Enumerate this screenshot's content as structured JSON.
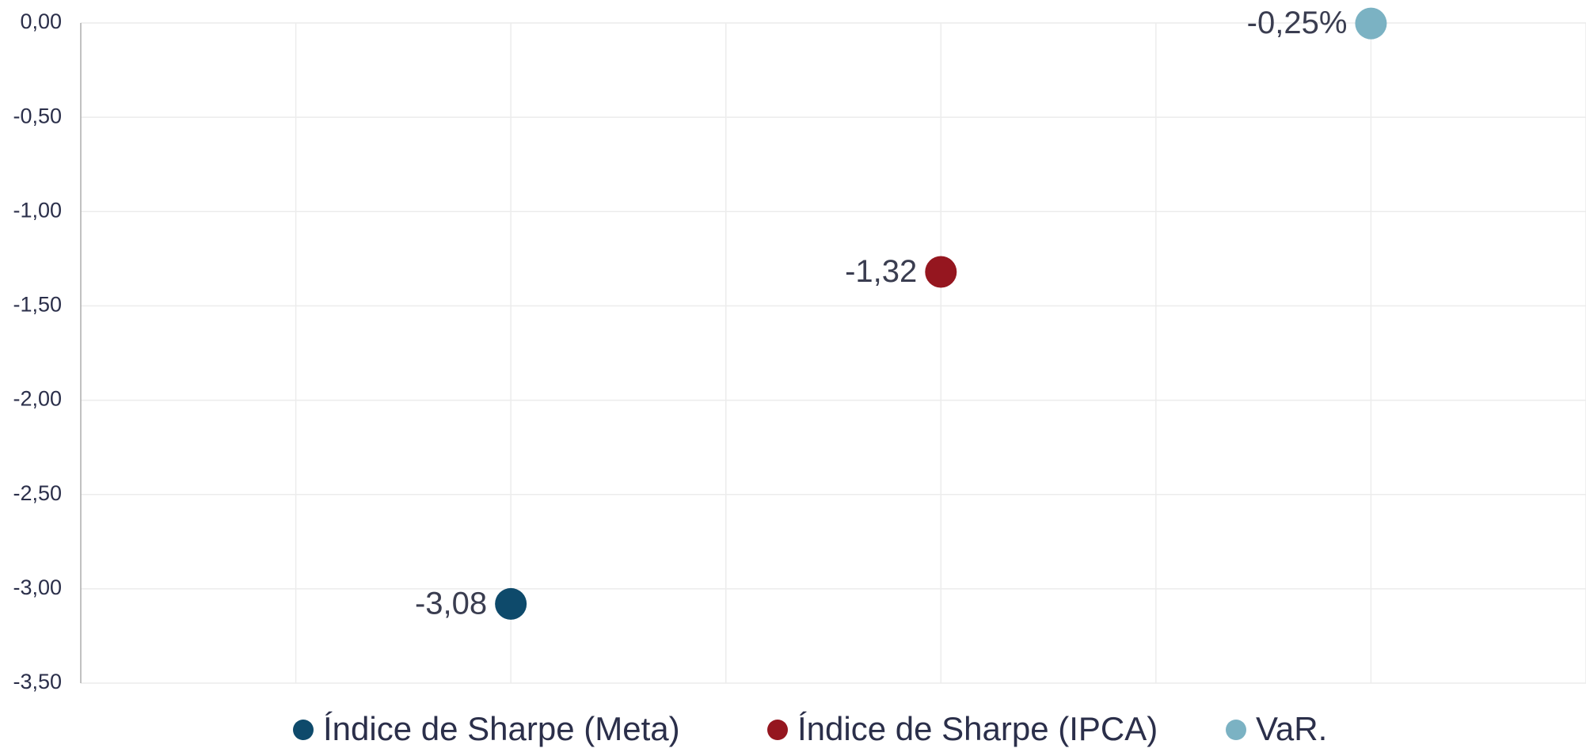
{
  "chart_data": {
    "type": "scatter",
    "series": [
      {
        "name": "Índice de Sharpe (Meta)",
        "color": "#0e4a6b",
        "x": [
          2
        ],
        "values": [
          -3.08
        ],
        "value_labels": [
          "-3,08"
        ]
      },
      {
        "name": "Índice de Sharpe (IPCA)",
        "color": "#95161f",
        "x": [
          4
        ],
        "values": [
          -1.32
        ],
        "value_labels": [
          "-1,32"
        ]
      },
      {
        "name": "VaR.",
        "color": "#7bb2c3",
        "x": [
          6
        ],
        "values": [
          -0.0025
        ],
        "value_labels": [
          "-0,25%"
        ]
      }
    ],
    "xlim": [
      0,
      7
    ],
    "xticks": [
      0,
      1,
      2,
      3,
      4,
      5,
      6,
      7
    ],
    "ylim": [
      -3.5,
      0
    ],
    "yticks": [
      {
        "value": -3.5,
        "label": "-3,50"
      },
      {
        "value": -3,
        "label": "-3,00"
      },
      {
        "value": -2.5,
        "label": "-2,50"
      },
      {
        "value": -2,
        "label": "-2,00"
      },
      {
        "value": -1.5,
        "label": "-1,50"
      },
      {
        "value": -1,
        "label": "-1,00"
      },
      {
        "value": -0.5,
        "label": "-0,50"
      },
      {
        "value": 0,
        "label": "0,00"
      }
    ],
    "grid": true,
    "legend": "bottom"
  }
}
